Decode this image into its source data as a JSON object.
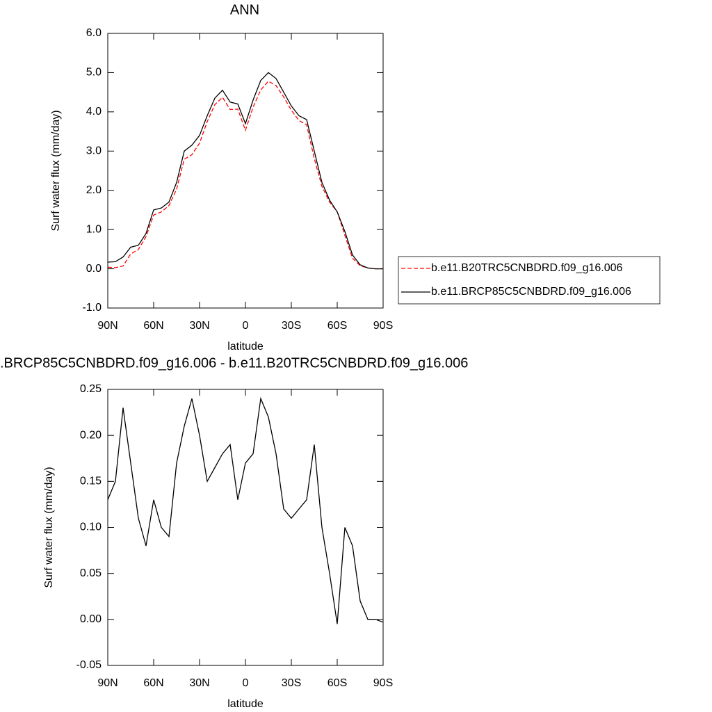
{
  "chart_data": [
    {
      "type": "line",
      "title": "ANN",
      "xlabel": "latitude",
      "ylabel": "Surf water flux (mm/day)",
      "x": [
        90,
        85,
        80,
        75,
        70,
        65,
        60,
        55,
        50,
        45,
        40,
        35,
        30,
        25,
        20,
        15,
        10,
        5,
        0,
        -5,
        -10,
        -15,
        -20,
        -25,
        -30,
        -35,
        -40,
        -45,
        -50,
        -55,
        -60,
        -65,
        -70,
        -75,
        -80,
        -85,
        -90
      ],
      "xlim": [
        90,
        -90
      ],
      "xticks": [
        {
          "value": 90,
          "label": "90N"
        },
        {
          "value": 60,
          "label": "60N"
        },
        {
          "value": 30,
          "label": "30N"
        },
        0,
        {
          "value": -30,
          "label": "30S"
        },
        {
          "value": -60,
          "label": "60S"
        },
        {
          "value": -90,
          "label": "90S"
        }
      ],
      "ylim": [
        -1,
        6
      ],
      "yticks": [
        {
          "value": -1,
          "label": "-1.0"
        },
        {
          "value": 0,
          "label": "0.0"
        },
        {
          "value": 1,
          "label": "1.0"
        },
        {
          "value": 2,
          "label": "2.0"
        },
        {
          "value": 3,
          "label": "3.0"
        },
        {
          "value": 4,
          "label": "4.0"
        },
        {
          "value": 5,
          "label": "5.0"
        },
        {
          "value": 6,
          "label": "6.0"
        }
      ],
      "legend": "right",
      "series": [
        {
          "name": "b.e11.B20TRC5CNBDRD.f09_g16.006",
          "color": "#ff0000",
          "style": "dashed",
          "values": [
            0.04,
            0.03,
            0.07,
            0.38,
            0.49,
            0.82,
            1.37,
            1.45,
            1.61,
            2.03,
            2.79,
            2.91,
            3.2,
            3.75,
            4.185,
            4.37,
            4.06,
            4.07,
            3.53,
            4.12,
            4.56,
            4.78,
            4.67,
            4.38,
            4.04,
            3.78,
            3.67,
            2.81,
            2.1,
            1.7,
            1.455,
            0.85,
            0.27,
            0.08,
            0.02,
            0,
            0.003
          ]
        },
        {
          "name": "b.e11.BRCP85C5CNBDRD.f09_g16.006",
          "color": "#000000",
          "style": "solid",
          "values": [
            0.17,
            0.18,
            0.3,
            0.55,
            0.6,
            0.9,
            1.5,
            1.55,
            1.7,
            2.2,
            3.0,
            3.15,
            3.4,
            3.9,
            4.35,
            4.55,
            4.25,
            4.2,
            3.7,
            4.3,
            4.8,
            5.0,
            4.85,
            4.5,
            4.15,
            3.9,
            3.8,
            3.0,
            2.2,
            1.75,
            1.45,
            0.95,
            0.35,
            0.1,
            0.02,
            0,
            0
          ]
        }
      ]
    },
    {
      "type": "line",
      "title": ".BRCP85C5CNBDRD.f09_g16.006 - b.e11.B20TRC5CNBDRD.f09_g16.006",
      "xlabel": "latitude",
      "ylabel": "Surf water flux (mm/day)",
      "x": [
        90,
        85,
        80,
        75,
        70,
        65,
        60,
        55,
        50,
        45,
        40,
        35,
        30,
        25,
        20,
        15,
        10,
        5,
        0,
        -5,
        -10,
        -15,
        -20,
        -25,
        -30,
        -35,
        -40,
        -45,
        -50,
        -55,
        -60,
        -65,
        -70,
        -75,
        -80,
        -85,
        -90
      ],
      "xlim": [
        90,
        -90
      ],
      "xticks": [
        {
          "value": 90,
          "label": "90N"
        },
        {
          "value": 60,
          "label": "60N"
        },
        {
          "value": 30,
          "label": "30N"
        },
        0,
        {
          "value": -30,
          "label": "30S"
        },
        {
          "value": -60,
          "label": "60S"
        },
        {
          "value": -90,
          "label": "90S"
        }
      ],
      "ylim": [
        -0.05,
        0.25
      ],
      "yticks": [
        -0.05,
        {
          "value": 0,
          "label": "0.00"
        },
        0.05,
        {
          "value": 0.1,
          "label": "0.10"
        },
        0.15,
        {
          "value": 0.2,
          "label": "0.20"
        },
        0.25
      ],
      "series": [
        {
          "color": "#000000",
          "style": "solid",
          "values": [
            0.13,
            0.15,
            0.23,
            0.17,
            0.11,
            0.08,
            0.13,
            0.1,
            0.09,
            0.17,
            0.21,
            0.24,
            0.2,
            0.15,
            0.165,
            0.18,
            0.19,
            0.13,
            0.17,
            0.18,
            0.24,
            0.22,
            0.18,
            0.12,
            0.11,
            0.12,
            0.13,
            0.19,
            0.1,
            0.05,
            -0.005,
            0.1,
            0.08,
            0.02,
            0,
            0,
            -0.003
          ]
        }
      ]
    }
  ]
}
